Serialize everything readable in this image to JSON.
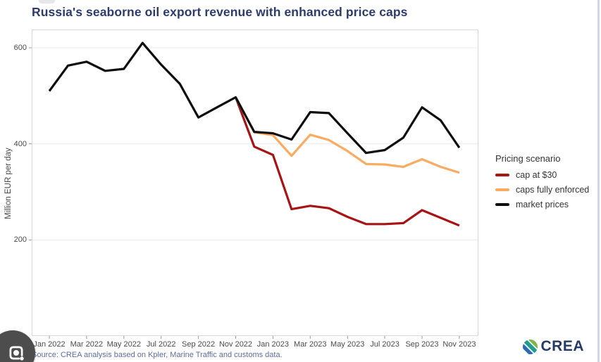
{
  "page": {
    "title": "Russia's seaborne oil export revenue with enhanced price caps",
    "source": "Source: CREA analysis based on Kpler, Marine Traffic and customs data.",
    "brand": "CREA"
  },
  "legend": {
    "title": "Pricing scenario",
    "items": [
      {
        "label": "cap at $30",
        "color": "#a81414"
      },
      {
        "label": "caps fully enforced",
        "color": "#fbab60"
      },
      {
        "label": "market prices",
        "color": "#0d0d0d"
      }
    ]
  },
  "chart_data": {
    "type": "line",
    "title": "Russia's seaborne oil export revenue with enhanced price caps",
    "xlabel": "",
    "ylabel": "Million EUR per day",
    "ylim": [
      0,
      638
    ],
    "yticks": [
      200,
      400,
      600
    ],
    "grid": true,
    "legend_position": "right",
    "months": [
      "Jan 2022",
      "Feb 2022",
      "Mar 2022",
      "Apr 2022",
      "May 2022",
      "Jun 2022",
      "Jul 2022",
      "Aug 2022",
      "Sep 2022",
      "Oct 2022",
      "Nov 2022",
      "Dec 2022",
      "Jan 2023",
      "Feb 2023",
      "Mar 2023",
      "Apr 2023",
      "May 2023",
      "Jun 2023",
      "Jul 2023",
      "Aug 2023",
      "Sep 2023",
      "Oct 2023",
      "Nov 2023"
    ],
    "xtick_labels": [
      "Jan 2022",
      "Mar 2022",
      "May 2022",
      "Jul 2022",
      "Sep 2022",
      "Nov 2022",
      "Jan 2023",
      "Mar 2023",
      "May 2023",
      "Jul 2023",
      "Sep 2023",
      "Nov 2023"
    ],
    "series": [
      {
        "name": "cap at $30",
        "color": "#a81414",
        "start_index": 10,
        "values": [
          497,
          394,
          377,
          264,
          271,
          266,
          248,
          233,
          233,
          235,
          262,
          246,
          230
        ]
      },
      {
        "name": "caps fully enforced",
        "color": "#fbab60",
        "start_index": 10,
        "values": [
          497,
          424,
          418,
          375,
          419,
          408,
          385,
          358,
          357,
          352,
          368,
          352,
          340
        ]
      },
      {
        "name": "market prices",
        "color": "#0d0d0d",
        "start_index": 0,
        "values": [
          510,
          563,
          571,
          552,
          556,
          610,
          565,
          525,
          455,
          476,
          497,
          425,
          422,
          409,
          466,
          464,
          422,
          381,
          387,
          413,
          476,
          449,
          392
        ]
      }
    ]
  }
}
